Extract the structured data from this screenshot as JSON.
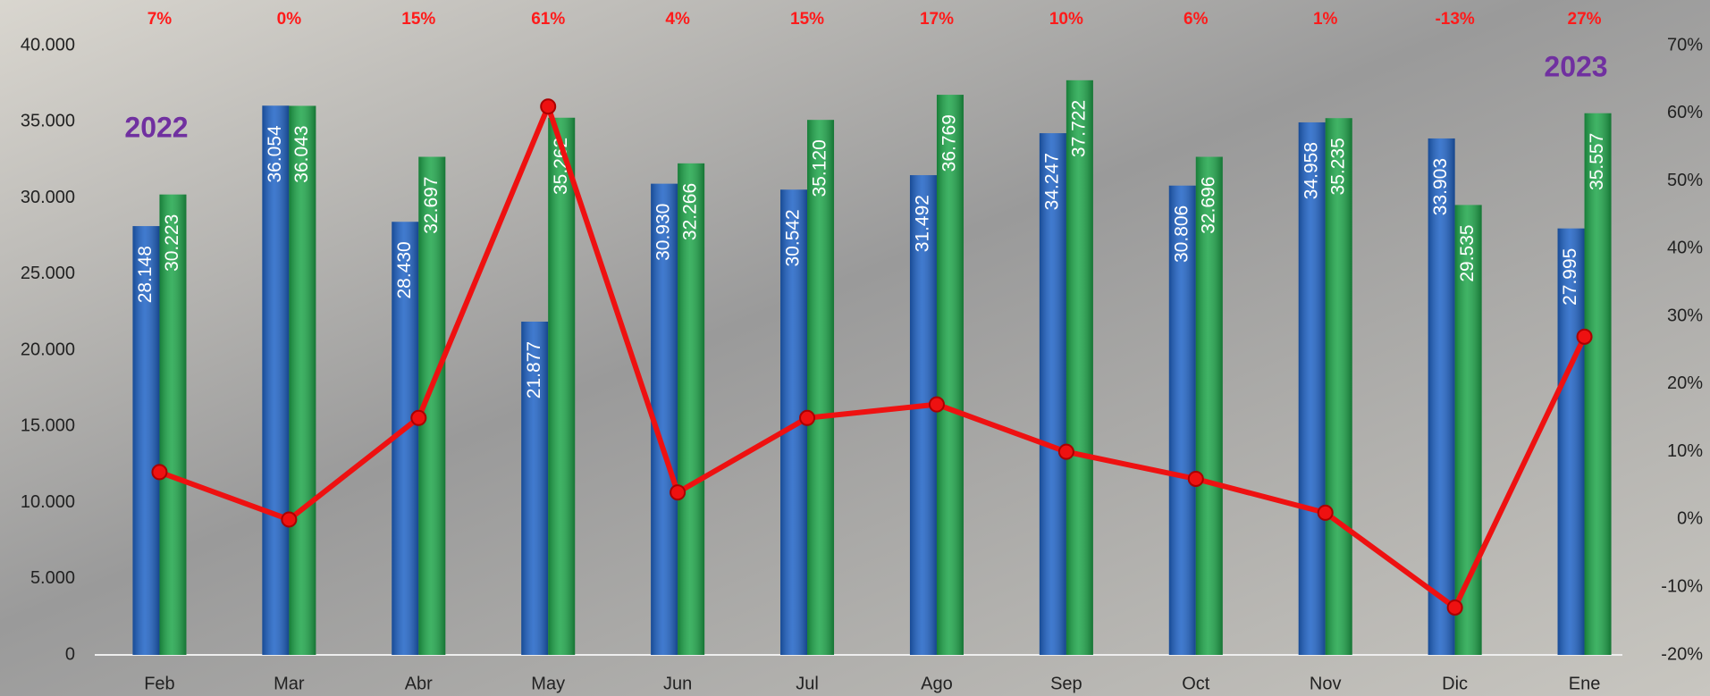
{
  "chart_data": {
    "type": "bar-line",
    "categories": [
      "Feb",
      "Mar",
      "Abr",
      "May",
      "Jun",
      "Jul",
      "Ago",
      "Sep",
      "Oct",
      "Nov",
      "Dic",
      "Ene"
    ],
    "series": [
      {
        "color": "#1f63c6",
        "values": [
          28148,
          36054,
          28430,
          21877,
          30930,
          30542,
          31492,
          34247,
          30806,
          34958,
          33903,
          27995
        ],
        "value_labels": [
          "28.148",
          "36.054",
          "28.430",
          "21.877",
          "30.930",
          "30.542",
          "31.492",
          "34.247",
          "30.806",
          "34.958",
          "33.903",
          "27.995"
        ]
      },
      {
        "color": "#1ea64a",
        "values": [
          30223,
          36043,
          32697,
          35262,
          32266,
          35120,
          36769,
          37722,
          32696,
          35235,
          29535,
          35557
        ],
        "value_labels": [
          "30.223",
          "36.043",
          "32.697",
          "35.262",
          "32.266",
          "35.120",
          "36.769",
          "37.722",
          "32.696",
          "35.235",
          "29.535",
          "35.557"
        ]
      },
      {
        "type": "line",
        "axis": "y2",
        "color": "#ee1111",
        "values": [
          7,
          0,
          15,
          61,
          4,
          15,
          17,
          10,
          6,
          1,
          -13,
          27
        ],
        "value_labels": [
          "7%",
          "0%",
          "15%",
          "61%",
          "4%",
          "15%",
          "17%",
          "10%",
          "6%",
          "1%",
          "-13%",
          "27%"
        ]
      }
    ],
    "ylim": [
      0,
      40000
    ],
    "yticks": [
      0,
      {
        "value": 5000,
        "label": "5.000"
      },
      {
        "value": 10000,
        "label": "10.000"
      },
      {
        "value": 15000,
        "label": "15.000"
      },
      {
        "value": 20000,
        "label": "20.000"
      },
      {
        "value": 25000,
        "label": "25.000"
      },
      {
        "value": 30000,
        "label": "30.000"
      },
      {
        "value": 35000,
        "label": "35.000"
      },
      {
        "value": 40000,
        "label": "40.000"
      }
    ],
    "y2lim": [
      -20,
      70
    ],
    "y2ticks": [
      {
        "value": -20,
        "label": "-20%"
      },
      {
        "value": -10,
        "label": "-10%"
      },
      {
        "value": 0,
        "label": "0%"
      },
      {
        "value": 10,
        "label": "10%"
      },
      {
        "value": 20,
        "label": "20%"
      },
      {
        "value": 30,
        "label": "30%"
      },
      {
        "value": 40,
        "label": "40%"
      },
      {
        "value": 50,
        "label": "50%"
      },
      {
        "value": 60,
        "label": "60%"
      },
      {
        "value": 70,
        "label": "70%"
      }
    ],
    "annotations": [
      "2022",
      "2023"
    ]
  }
}
